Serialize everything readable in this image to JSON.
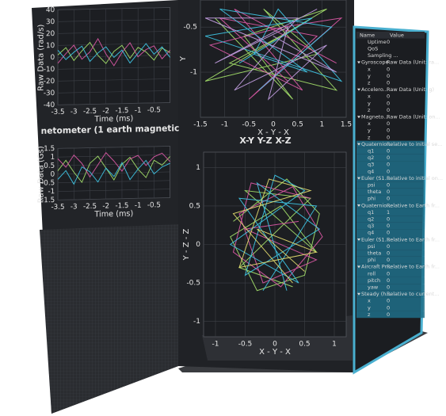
{
  "plots": [
    {
      "type": "line",
      "y_label": "Raw Data (rad/s)",
      "x_label": "Time (ms)",
      "xlim": [
        -3.5,
        0
      ],
      "ylim": [
        -40,
        40
      ],
      "xticks": [
        -3.5,
        -3,
        -2.5,
        -2,
        -1.5,
        -1,
        -0.5
      ],
      "yticks": [
        -40,
        -30,
        -20,
        -10,
        0,
        10,
        20,
        30,
        40
      ],
      "x": [
        -3.5,
        -3.25,
        -3,
        -2.75,
        -2.5,
        -2.25,
        -2,
        -1.75,
        -1.5,
        -1.25,
        -1,
        -0.75,
        -0.5,
        -0.25,
        0
      ],
      "series": [
        {
          "color": "#a6e36b",
          "values": [
            2,
            8,
            -3,
            5,
            12,
            1,
            -6,
            4,
            9,
            -2,
            7,
            3,
            -4,
            6,
            2
          ]
        },
        {
          "color": "#e05aa8",
          "values": [
            -5,
            3,
            10,
            -2,
            4,
            15,
            2,
            -8,
            3,
            11,
            -1,
            5,
            8,
            -3,
            4
          ]
        },
        {
          "color": "#3fc8e8",
          "values": [
            6,
            -2,
            4,
            9,
            -4,
            3,
            8,
            -1,
            5,
            -6,
            2,
            10,
            1,
            7,
            -2
          ]
        }
      ]
    },
    {
      "type": "line",
      "title": "netometer (1 earth magnetic",
      "y_label": "Raw Data (Gs)",
      "x_label": "Time (ms)",
      "xlim": [
        -3.5,
        0
      ],
      "ylim": [
        -1.5,
        1.5
      ],
      "xticks": [
        -3.5,
        -3,
        -2.5,
        -2,
        -1.5,
        -1,
        -0.5
      ],
      "yticks": [
        -1.5,
        -1,
        -0.5,
        0,
        0.5,
        1,
        1.5
      ],
      "x": [
        -3.5,
        -3.25,
        -3,
        -2.75,
        -2.5,
        -2.25,
        -2,
        -1.75,
        -1.5,
        -1.25,
        -1,
        -0.75,
        -0.5,
        -0.25,
        0
      ],
      "series": [
        {
          "color": "#a6e36b",
          "values": [
            0.2,
            0.8,
            0.1,
            -0.5,
            0.6,
            1,
            0.3,
            -0.4,
            0.5,
            0.9,
            0.2,
            -0.3,
            0.7,
            0.4,
            0.9
          ]
        },
        {
          "color": "#e05aa8",
          "values": [
            0.9,
            0.4,
            1.1,
            0.6,
            -0.2,
            0.5,
            1.2,
            0.7,
            0.1,
            0.8,
            1,
            0.4,
            0.9,
            1.1,
            0.6
          ]
        },
        {
          "color": "#3fc8e8",
          "values": [
            -0.3,
            0.2,
            -0.6,
            0.4,
            0.1,
            -0.5,
            0.3,
            -0.2,
            0.6,
            -0.4,
            0.2,
            0.7,
            -0.1,
            0.3,
            0.5
          ]
        }
      ]
    },
    {
      "type": "line",
      "y_label": "Y",
      "x_label": "X - Y - X",
      "xlim": [
        -1.5,
        1.5
      ],
      "ylim": [
        -1.5,
        -0.2
      ],
      "xticks": [
        -1.5,
        -1,
        -0.5,
        0,
        0.5,
        1,
        1.5
      ],
      "yticks": [
        -1,
        -0.5
      ],
      "series": [
        {
          "color": "#a6e36b",
          "x": [
            -1.2,
            0.4,
            -0.6,
            1.1,
            -1.4,
            0.9,
            -0.2,
            1.3,
            -0.9,
            0.5
          ],
          "values": [
            -0.4,
            -1.3,
            -0.6,
            -0.3,
            -1.1,
            -0.8,
            -0.3,
            -1.2,
            -0.9,
            -0.5
          ]
        },
        {
          "color": "#e05aa8",
          "x": [
            1.3,
            -0.8,
            0.6,
            -1.3,
            0.2,
            1.4,
            -0.5,
            0.9,
            -1.1,
            0.3
          ],
          "values": [
            -0.9,
            -0.3,
            -1.2,
            -0.7,
            -0.5,
            -0.4,
            -1.3,
            -0.6,
            -0.4,
            -1.1
          ]
        },
        {
          "color": "#3fc8e8",
          "x": [
            -0.3,
            1.2,
            -1.1,
            0.7,
            -0.4,
            0.1,
            1.4,
            -1.4,
            0.8,
            -0.7
          ],
          "values": [
            -1.2,
            -0.5,
            -0.3,
            -1,
            -0.8,
            -0.3,
            -1.1,
            -0.6,
            -0.4,
            -0.9
          ]
        },
        {
          "color": "#c7a1e6",
          "x": [
            0.9,
            -1.2,
            0.3,
            -0.1,
            1.1,
            -0.8,
            0.5,
            -1.4,
            1.3,
            0
          ],
          "values": [
            -0.3,
            -0.9,
            -0.5,
            -1.3,
            -0.7,
            -1.2,
            -0.4,
            -0.4,
            -1,
            -0.6
          ]
        }
      ]
    },
    {
      "type": "line",
      "title": "X-Y Y-Z X-Z",
      "y_label": "Y - Z - Z",
      "x_label": "X - Y - X",
      "xlim": [
        -1.2,
        1.2
      ],
      "ylim": [
        -1.2,
        1.2
      ],
      "xticks": [
        -1,
        -0.5,
        0,
        0.5,
        1
      ],
      "yticks": [
        -1,
        -0.5,
        0,
        0.5,
        1
      ],
      "series": [
        {
          "color": "#a6e36b",
          "x": [
            -0.7,
            0.2,
            0.75,
            0.5,
            -0.3,
            -0.75,
            0.1,
            0.7,
            -0.5,
            0.6,
            -0.6,
            0.3
          ],
          "values": [
            0.3,
            0.85,
            0.4,
            -0.4,
            -0.6,
            0.1,
            0.5,
            -0.1,
            0.7,
            0.6,
            -0.3,
            -0.55
          ]
        },
        {
          "color": "#e05aa8",
          "x": [
            0.6,
            -0.4,
            -0.7,
            0.1,
            0.8,
            0.3,
            -0.6,
            -0.2,
            0.7,
            -0.5,
            0.4
          ],
          "values": [
            0.6,
            0.8,
            -0.1,
            -0.55,
            0.1,
            0.75,
            0.4,
            -0.5,
            -0.2,
            0.2,
            0.3
          ]
        },
        {
          "color": "#3fc8e8",
          "x": [
            -0.2,
            0.7,
            -0.6,
            0.4,
            -0.75,
            0.5,
            0,
            -0.5,
            0.75,
            -0.3,
            0.2
          ],
          "values": [
            -0.6,
            0.5,
            0.6,
            -0.5,
            0,
            0.7,
            0.9,
            -0.4,
            0.2,
            0.8,
            -0.6
          ]
        },
        {
          "color": "#e8e070",
          "x": [
            0.3,
            -0.7,
            0.6,
            -0.1,
            -0.6,
            0.7,
            -0.3,
            0.5
          ],
          "values": [
            -0.5,
            0.4,
            0.7,
            0.85,
            -0.3,
            -0.1,
            0.2,
            -0.35
          ]
        }
      ]
    }
  ],
  "table": {
    "columns": [
      "Name",
      "Value"
    ],
    "rows": [
      {
        "name": "Uptime",
        "value": 0
      },
      {
        "name": "QoS"
      },
      {
        "name": "Sampling ..."
      },
      {
        "name": "Gyroscope",
        "value": "Raw Data (Unit: ra...",
        "section": true
      },
      {
        "name": "x",
        "value": 0
      },
      {
        "name": "y",
        "value": 0
      },
      {
        "name": "z",
        "value": 0
      },
      {
        "name": "Accelero...",
        "value": "Raw Data (Unit: g)",
        "section": true
      },
      {
        "name": "x",
        "value": 0
      },
      {
        "name": "y",
        "value": 0
      },
      {
        "name": "z",
        "value": 0
      },
      {
        "name": "Magneto...",
        "value": "Raw Data (Unit: on...",
        "section": true
      },
      {
        "name": "x",
        "value": 0
      },
      {
        "name": "y",
        "value": 0
      },
      {
        "name": "z",
        "value": 0
      },
      {
        "name": "Quaternio...",
        "value": "Relative to initial se...",
        "section": true,
        "highlight": true
      },
      {
        "name": "q1",
        "value": 0,
        "highlight": true
      },
      {
        "name": "q2",
        "value": 0,
        "highlight": true
      },
      {
        "name": "q3",
        "value": 0,
        "highlight": true
      },
      {
        "name": "q4",
        "value": 0,
        "highlight": true
      },
      {
        "name": "Euler (S1...",
        "value": "Relative to initial on...",
        "section": true,
        "highlight": true
      },
      {
        "name": "psi",
        "value": 0,
        "highlight": true
      },
      {
        "name": "theta",
        "value": 0,
        "highlight": true
      },
      {
        "name": "phi",
        "value": 0,
        "highlight": true
      },
      {
        "name": "Quaternio...",
        "value": "Relative to Earth fr...",
        "section": true,
        "highlight": true
      },
      {
        "name": "q1",
        "value": 1,
        "highlight": true
      },
      {
        "name": "q2",
        "value": 0,
        "highlight": true
      },
      {
        "name": "q3",
        "value": 0,
        "highlight": true
      },
      {
        "name": "q4",
        "value": 0,
        "highlight": true
      },
      {
        "name": "Euler (S1...",
        "value": "Relative to Earth fr...",
        "section": true,
        "highlight": true
      },
      {
        "name": "psi",
        "value": 0,
        "highlight": true
      },
      {
        "name": "theta",
        "value": 0,
        "highlight": true
      },
      {
        "name": "phi",
        "value": 0,
        "highlight": true
      },
      {
        "name": "Aircraft Pr...",
        "value": "Relative to Earth fr...",
        "section": true,
        "highlight": true
      },
      {
        "name": "roll",
        "value": 0,
        "highlight": true
      },
      {
        "name": "pitch",
        "value": 0,
        "highlight": true
      },
      {
        "name": "yaw",
        "value": 0,
        "highlight": true
      },
      {
        "name": "Steady (h...",
        "value": "Relative to current...",
        "section": true,
        "highlight": true
      },
      {
        "name": "x",
        "value": 0,
        "highlight": true
      },
      {
        "name": "y",
        "value": 0,
        "highlight": true
      },
      {
        "name": "z",
        "value": 0,
        "highlight": true
      }
    ]
  }
}
